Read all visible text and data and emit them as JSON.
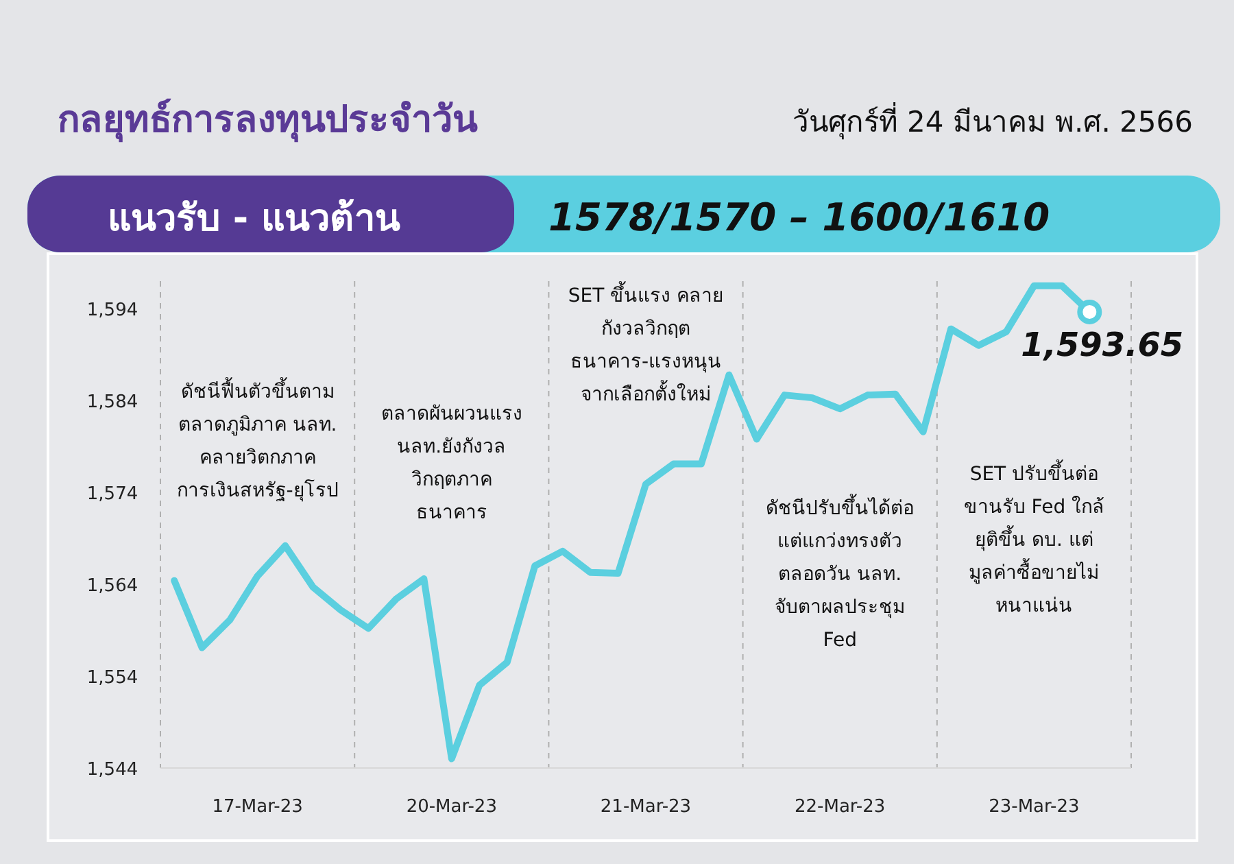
{
  "chart_data": {
    "type": "line",
    "title": "กลยุทธ์การลงทุนประจำวัน",
    "subtitle": "วันศุกร์ที่ 24 มีนาคม พ.ศ. 2566",
    "annotations": [
      "แนวรับ - แนวต้าน",
      "1578/1570 – 1600/1610",
      "ดัชนีฟื้นตัวขึ้นตาม\nตลาดภูมิภาค นลท.\nคลายวิตกภาค\nการเงินสหรัฐ-ยุโรป",
      "ตลาดผันผวนแรง\nนลท.ยังกังวล\nวิกฤตภาค\nธนาคาร",
      "SET ขึ้นแรง คลาย\nกังวลวิกฤต\nธนาคาร-แรงหนุน\nจากเลือกตั้งใหม่",
      "ดัชนีปรับขึ้นได้ต่อ\nแต่แกว่งทรงตัว\nตลอดวัน นลท.\nจับตาผลประชุม\nFed",
      "SET ปรับขึ้นต่อ\nขานรับ Fed ใกล้\nยุติขึ้น ดบ. แต่\nมูลค่าซื้อขายไม่\nหนาแน่น"
    ],
    "categories": [
      null,
      null,
      null,
      "17-Mar-23",
      null,
      null,
      null,
      null,
      null,
      null,
      "20-Mar-23",
      null,
      null,
      null,
      null,
      null,
      null,
      "21-Mar-23",
      null,
      null,
      null,
      null,
      null,
      null,
      "22-Mar-23",
      null,
      null,
      null,
      null,
      null,
      null,
      "23-Mar-23",
      null,
      null,
      null
    ],
    "series": [
      {
        "color": "#5bcfdf",
        "values": [
          1564.4,
          1557.1,
          1560.1,
          1564.9,
          1568.2,
          1563.7,
          1561.2,
          1559.2,
          1562.4,
          1564.6,
          1545.0,
          1553.0,
          1555.5,
          1566.0,
          1567.6,
          1565.3,
          1565.2,
          1574.9,
          1577.1,
          1577.1,
          1586.8,
          1579.8,
          1584.6,
          1584.3,
          1583.1,
          1584.6,
          1584.7,
          1580.6,
          1591.8,
          1590.0,
          1591.5,
          1596.5,
          1596.5,
          1593.65,
          null
        ],
        "value_labels": [
          null,
          null,
          null,
          null,
          null,
          null,
          null,
          null,
          null,
          null,
          null,
          null,
          null,
          null,
          null,
          null,
          null,
          null,
          null,
          null,
          null,
          null,
          null,
          null,
          null,
          null,
          null,
          null,
          null,
          null,
          null,
          null,
          null,
          "1,593.65",
          null
        ]
      }
    ],
    "ylim": [
      1544,
      1597
    ],
    "yticks": [
      {
        "value": 1544,
        "label": "1,544"
      },
      {
        "value": 1554,
        "label": "1,554"
      },
      {
        "value": 1564,
        "label": "1,564"
      },
      {
        "value": 1574,
        "label": "1,574"
      },
      {
        "value": 1584,
        "label": "1,584"
      },
      {
        "value": 1594,
        "label": "1,594"
      }
    ],
    "grid": false,
    "marker": "none",
    "line_style": "solid"
  }
}
